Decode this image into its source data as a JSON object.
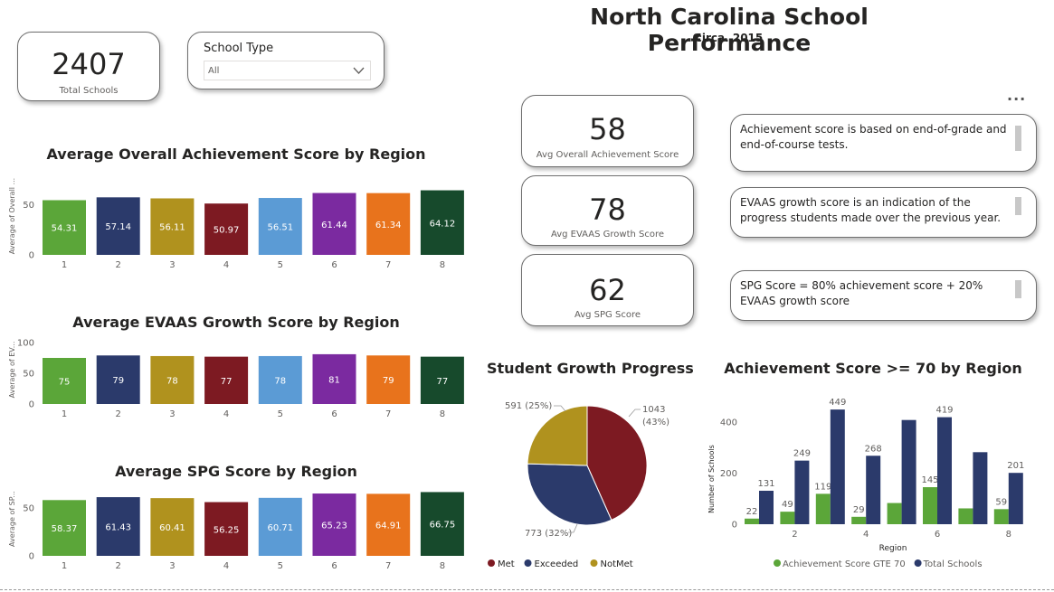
{
  "header": {
    "title": "North Carolina School Performance",
    "subtitle": "circa. 2015"
  },
  "total_card": {
    "value": "2407",
    "label": "Total Schools"
  },
  "filter": {
    "label": "School Type",
    "value": "All"
  },
  "kpis": [
    {
      "value": "58",
      "label": "Avg Overall Achievement Score"
    },
    {
      "value": "78",
      "label": "Avg EVAAS Growth Score"
    },
    {
      "value": "62",
      "label": "Avg SPG Score"
    }
  ],
  "notes": [
    "Achievement score is based on end-of-grade and end-of-course tests.",
    "EVAAS growth score is an indication of the progress students made over the previous year.",
    "SPG Score = 80% achievement score + 20% EVAAS growth score"
  ],
  "more_options": "...",
  "colors": {
    "region": [
      "#5ba639",
      "#2b3a6b",
      "#b0921e",
      "#7d1a22",
      "#5b9bd5",
      "#7b2aa0",
      "#e8731c",
      "#174a2c"
    ],
    "met": "#7d1a22",
    "exceeded": "#2b3a6b",
    "notmet": "#b0921e",
    "green": "#5ba639",
    "navy": "#2b3a6b"
  },
  "chart_data": [
    {
      "type": "bar",
      "title": "Average Overall Achievement Score by Region",
      "ylabel": "Average of Overall ...",
      "categories": [
        "1",
        "2",
        "3",
        "4",
        "5",
        "6",
        "7",
        "8"
      ],
      "values": [
        54.31,
        57.14,
        56.11,
        50.97,
        56.51,
        61.44,
        61.34,
        64.12
      ],
      "value_labels": [
        "54.31",
        "57.14",
        "56.11",
        "50.97",
        "56.51",
        "61.44",
        "61.34",
        "64.12"
      ],
      "yticks": [
        "0",
        "50"
      ],
      "ylim": [
        0,
        70
      ],
      "grid": false
    },
    {
      "type": "bar",
      "title": "Average EVAAS Growth Score by Region",
      "ylabel": "Average of EV...",
      "categories": [
        "1",
        "2",
        "3",
        "4",
        "5",
        "6",
        "7",
        "8"
      ],
      "values": [
        75,
        79,
        78,
        77,
        78,
        81,
        79,
        77
      ],
      "value_labels": [
        "75",
        "79",
        "78",
        "77",
        "78",
        "81",
        "79",
        "77"
      ],
      "yticks": [
        "0",
        "50",
        "100"
      ],
      "ylim": [
        0,
        100
      ],
      "grid": false
    },
    {
      "type": "bar",
      "title": "Average SPG Score by Region",
      "ylabel": "Average of SP...",
      "categories": [
        "1",
        "2",
        "3",
        "4",
        "5",
        "6",
        "7",
        "8"
      ],
      "values": [
        58.37,
        61.43,
        60.41,
        56.25,
        60.71,
        65.23,
        64.91,
        66.75
      ],
      "value_labels": [
        "58.37",
        "61.43",
        "60.41",
        "56.25",
        "60.71",
        "65.23",
        "64.91",
        "66.75"
      ],
      "yticks": [
        "0",
        "50"
      ],
      "ylim": [
        0,
        70
      ],
      "grid": false
    },
    {
      "type": "pie",
      "title": "Student Growth Progress",
      "categories": [
        "Met",
        "Exceeded",
        "NotMet"
      ],
      "values": [
        1043,
        773,
        591
      ],
      "slice_labels": [
        "1043 (43%)",
        "773 (32%)",
        "591 (25%)"
      ],
      "legend": [
        "Met",
        "Exceeded",
        "NotMet"
      ],
      "legend_position": "bottom"
    },
    {
      "type": "bar",
      "title": "Achievement Score >= 70 by Region",
      "xlabel": "Region",
      "ylabel": "Number of Schools",
      "categories": [
        "1",
        "2",
        "3",
        "4",
        "5",
        "6",
        "7",
        "8"
      ],
      "xticks": [
        "2",
        "4",
        "6",
        "8"
      ],
      "yticks": [
        "0",
        "200",
        "400"
      ],
      "ylim": [
        0,
        460
      ],
      "series": [
        {
          "name": "Achievement Score GTE 70",
          "values": [
            22,
            49,
            119,
            29,
            83,
            145,
            62,
            59
          ],
          "labels": [
            "22",
            "49",
            "119",
            "29",
            "",
            "145",
            "",
            "59"
          ]
        },
        {
          "name": "Total Schools",
          "values": [
            131,
            249,
            449,
            268,
            408,
            419,
            282,
            201
          ],
          "labels": [
            "131",
            "249",
            "449",
            "268",
            "",
            "419",
            "",
            "201"
          ]
        }
      ],
      "legend_position": "bottom"
    }
  ]
}
